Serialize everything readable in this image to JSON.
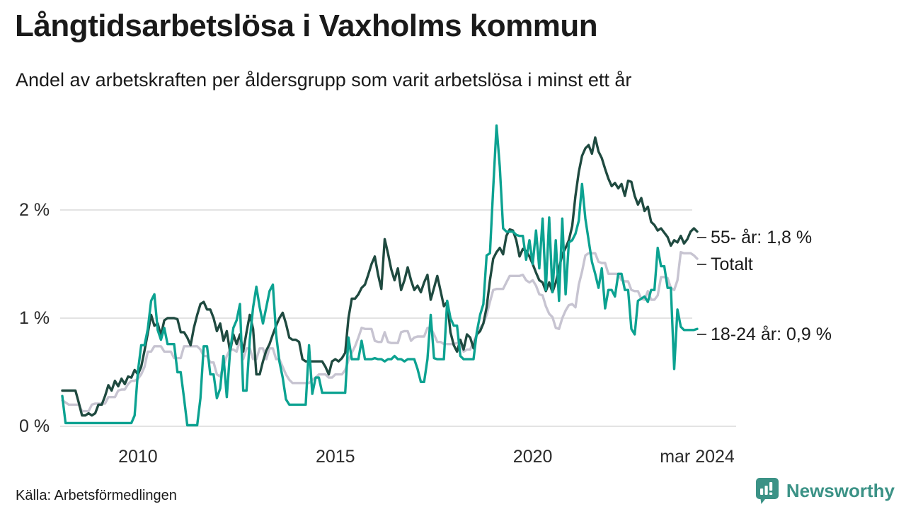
{
  "header": {
    "title": "Långtidsarbetslösa i Vaxholms kommun",
    "subtitle": "Andel av arbetskraften per åldersgrupp som varit arbetslösa i minst ett år"
  },
  "footer": {
    "source": "Källa: Arbetsförmedlingen",
    "brand": "Newsworthy"
  },
  "colors": {
    "background": "#ffffff",
    "grid": "#e3e3e3",
    "baseline": "#e3e3e3",
    "text": "#1a1a1a",
    "tick_text": "#2b2b2b",
    "annotation_dash": "#4a4a4a",
    "brand_teal": "#3b9286",
    "series_55": "#1f4a40",
    "series_total": "#c7c4d1",
    "series_1824": "#0ca291"
  },
  "chart_data": {
    "type": "line",
    "title": "Långtidsarbetslösa i Vaxholms kommun",
    "subtitle": "Andel av arbetskraften per åldersgrupp som varit arbetslösa i minst ett år",
    "x_start": "2008-02",
    "x_end": "2024-03",
    "x_unit": "month",
    "ylabel": "",
    "xlabel": "",
    "ylim": [
      0,
      2.85
    ],
    "grid": "horizontal",
    "legend_position": "right-annotations",
    "y_ticks": [
      {
        "label": "0 %",
        "value": 0
      },
      {
        "label": "1 %",
        "value": 1
      },
      {
        "label": "2 %",
        "value": 2
      }
    ],
    "x_ticks": [
      {
        "label": "2010",
        "month_index": 23
      },
      {
        "label": "2015",
        "month_index": 83
      },
      {
        "label": "2020",
        "month_index": 143
      },
      {
        "label": "mar 2024",
        "month_index": 193
      }
    ],
    "series": [
      {
        "name": "Totalt",
        "annotation": "Totalt",
        "color": "#c7c4d1",
        "stroke_width": 3.4,
        "values": [
          0.24,
          0.22,
          0.2,
          0.2,
          0.2,
          0.2,
          0.14,
          0.14,
          0.14,
          0.2,
          0.21,
          0.21,
          0.21,
          0.21,
          0.27,
          0.27,
          0.27,
          0.33,
          0.34,
          0.34,
          0.39,
          0.42,
          0.42,
          0.44,
          0.48,
          0.55,
          0.69,
          0.69,
          0.74,
          0.74,
          0.74,
          0.69,
          0.69,
          0.69,
          0.63,
          0.63,
          0.63,
          0.74,
          0.74,
          0.74,
          0.74,
          0.74,
          0.71,
          0.65,
          0.65,
          0.59,
          0.59,
          0.48,
          0.46,
          0.56,
          0.65,
          0.71,
          0.71,
          0.69,
          0.8,
          0.62,
          0.72,
          0.72,
          0.62,
          0.62,
          0.72,
          0.72,
          0.62,
          0.72,
          0.72,
          0.62,
          0.62,
          0.55,
          0.48,
          0.43,
          0.4,
          0.4,
          0.4,
          0.4,
          0.4,
          0.4,
          0.43,
          0.45,
          0.48,
          0.48,
          0.48,
          0.45,
          0.45,
          0.48,
          0.48,
          0.48,
          0.52,
          0.61,
          0.68,
          0.74,
          0.82,
          0.91,
          0.9,
          0.9,
          0.9,
          0.79,
          0.78,
          0.78,
          0.87,
          0.78,
          0.77,
          0.77,
          0.77,
          0.87,
          0.88,
          0.88,
          0.79,
          0.82,
          0.83,
          0.83,
          0.83,
          0.91,
          0.91,
          0.85,
          0.78,
          0.78,
          0.76,
          0.76,
          0.76,
          0.76,
          0.77,
          0.77,
          0.69,
          0.71,
          0.71,
          0.78,
          0.85,
          0.91,
          0.95,
          1.03,
          1.15,
          1.26,
          1.27,
          1.27,
          1.27,
          1.33,
          1.39,
          1.39,
          1.39,
          1.39,
          1.4,
          1.35,
          1.33,
          1.35,
          1.3,
          1.22,
          1.21,
          1.11,
          1.04,
          1.01,
          0.91,
          0.9,
          1.0,
          1.07,
          1.12,
          1.13,
          1.1,
          1.31,
          1.43,
          1.58,
          1.6,
          1.6,
          1.6,
          1.52,
          1.51,
          1.51,
          1.41,
          1.41,
          1.41,
          1.41,
          1.35,
          1.34,
          1.34,
          1.26,
          1.25,
          1.25,
          1.18,
          1.17,
          1.25,
          1.17,
          1.17,
          1.21,
          1.38,
          1.38,
          1.37,
          1.28,
          1.26,
          1.35,
          1.61,
          1.6,
          1.6,
          1.6,
          1.58,
          1.55
        ]
      },
      {
        "name": "55- år",
        "annotation": "55- år: 1,8 %",
        "color": "#1f4a40",
        "stroke_width": 3.4,
        "values": [
          0.33,
          0.33,
          0.33,
          0.33,
          0.33,
          0.22,
          0.1,
          0.1,
          0.12,
          0.1,
          0.12,
          0.2,
          0.2,
          0.28,
          0.38,
          0.33,
          0.42,
          0.37,
          0.44,
          0.39,
          0.46,
          0.45,
          0.52,
          0.48,
          0.55,
          0.7,
          0.86,
          1.03,
          0.93,
          0.95,
          0.84,
          0.98,
          1.0,
          1.0,
          1.0,
          0.99,
          0.87,
          0.87,
          0.82,
          0.75,
          0.91,
          1.03,
          1.13,
          1.15,
          1.08,
          1.08,
          1.0,
          0.88,
          0.95,
          0.79,
          0.88,
          0.69,
          0.85,
          0.76,
          0.85,
          0.69,
          0.87,
          1.03,
          0.9,
          0.48,
          0.48,
          0.6,
          0.7,
          0.76,
          0.85,
          0.93,
          1.0,
          1.05,
          0.95,
          0.82,
          0.8,
          0.8,
          0.78,
          0.62,
          0.6,
          0.6,
          0.6,
          0.6,
          0.6,
          0.6,
          0.55,
          0.48,
          0.6,
          0.62,
          0.6,
          0.63,
          0.68,
          1.0,
          1.18,
          1.18,
          1.22,
          1.28,
          1.31,
          1.4,
          1.5,
          1.57,
          1.4,
          1.27,
          1.73,
          1.6,
          1.45,
          1.35,
          1.46,
          1.26,
          1.35,
          1.47,
          1.35,
          1.26,
          1.3,
          1.24,
          1.33,
          1.4,
          1.17,
          1.28,
          1.39,
          1.25,
          1.11,
          1.15,
          0.87,
          0.75,
          0.69,
          0.8,
          0.71,
          0.85,
          0.82,
          0.72,
          0.85,
          0.88,
          0.95,
          1.1,
          1.35,
          1.55,
          1.61,
          1.65,
          1.59,
          1.76,
          1.82,
          1.81,
          1.72,
          1.57,
          1.64,
          1.62,
          1.57,
          1.5,
          1.42,
          1.35,
          1.33,
          1.25,
          1.33,
          1.24,
          1.33,
          1.46,
          1.59,
          1.65,
          1.72,
          1.85,
          2.13,
          2.35,
          2.5,
          2.57,
          2.6,
          2.52,
          2.67,
          2.54,
          2.48,
          2.38,
          2.29,
          2.22,
          2.25,
          2.2,
          2.24,
          2.13,
          2.27,
          2.26,
          2.13,
          2.05,
          2.11,
          1.99,
          2.03,
          1.89,
          1.86,
          1.81,
          1.83,
          1.79,
          1.75,
          1.67,
          1.72,
          1.7,
          1.76,
          1.69,
          1.73,
          1.8,
          1.83,
          1.8
        ]
      },
      {
        "name": "18-24 år",
        "annotation": "18-24 år: 0,9 %",
        "color": "#0ca291",
        "stroke_width": 3.4,
        "values": [
          0.28,
          0.03,
          0.03,
          0.03,
          0.03,
          0.03,
          0.03,
          0.03,
          0.03,
          0.03,
          0.03,
          0.03,
          0.03,
          0.03,
          0.03,
          0.03,
          0.03,
          0.03,
          0.03,
          0.03,
          0.03,
          0.03,
          0.1,
          0.51,
          0.75,
          0.75,
          0.9,
          1.16,
          1.22,
          0.89,
          0.8,
          0.91,
          0.76,
          0.76,
          0.76,
          0.5,
          0.5,
          0.26,
          0.01,
          0.01,
          0.01,
          0.01,
          0.26,
          0.74,
          0.74,
          0.48,
          0.48,
          0.26,
          0.35,
          0.65,
          0.27,
          0.69,
          0.91,
          0.98,
          1.13,
          0.33,
          0.33,
          0.8,
          1.1,
          1.29,
          1.1,
          0.95,
          1.1,
          1.25,
          1.31,
          0.85,
          0.6,
          0.45,
          0.25,
          0.2,
          0.2,
          0.2,
          0.2,
          0.2,
          0.2,
          0.75,
          0.3,
          0.45,
          0.45,
          0.31,
          0.31,
          0.31,
          0.31,
          0.31,
          0.31,
          0.31,
          0.31,
          0.82,
          0.62,
          0.62,
          0.62,
          0.79,
          0.62,
          0.62,
          0.62,
          0.63,
          0.62,
          0.62,
          0.6,
          0.62,
          0.62,
          0.65,
          0.62,
          0.62,
          0.6,
          0.62,
          0.62,
          0.62,
          0.53,
          0.41,
          0.41,
          0.62,
          1.03,
          0.63,
          0.62,
          0.62,
          0.62,
          1.16,
          1.0,
          0.93,
          0.93,
          0.65,
          0.62,
          0.62,
          0.62,
          0.62,
          0.87,
          1.03,
          1.13,
          1.58,
          1.6,
          2.2,
          2.78,
          2.4,
          1.83,
          1.8,
          1.8,
          1.8,
          1.77,
          1.76,
          1.76,
          1.54,
          1.72,
          1.5,
          1.81,
          1.46,
          1.92,
          1.26,
          1.93,
          1.24,
          1.72,
          1.16,
          1.92,
          1.22,
          1.7,
          1.72,
          1.78,
          1.9,
          2.24,
          1.92,
          1.72,
          1.52,
          1.41,
          1.28,
          1.46,
          1.09,
          1.26,
          1.26,
          1.2,
          1.41,
          1.41,
          1.26,
          1.26,
          0.9,
          0.85,
          1.16,
          1.18,
          1.2,
          1.15,
          1.26,
          1.26,
          1.65,
          1.48,
          1.48,
          1.28,
          1.28,
          0.53,
          1.08,
          0.92,
          0.89,
          0.89,
          0.89,
          0.89,
          0.9
        ]
      }
    ],
    "annotations": [
      {
        "series": "55- år",
        "text": "55- år: 1,8 %"
      },
      {
        "series": "Totalt",
        "text": "Totalt"
      },
      {
        "series": "18-24 år",
        "text": "18-24 år: 0,9 %"
      }
    ]
  }
}
